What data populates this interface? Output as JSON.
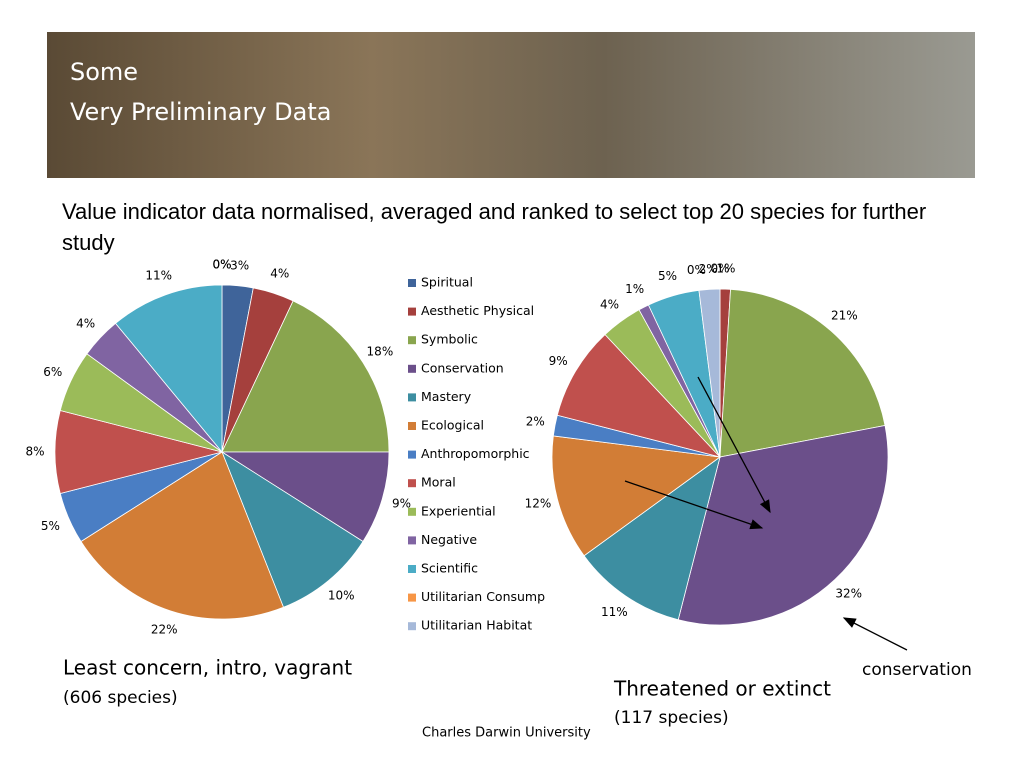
{
  "header": {
    "title_lines": [
      "Some",
      "Very Preliminary Data"
    ]
  },
  "intro": "Value indicator data normalised, averaged and ranked to select top 20 species for further study",
  "captions": {
    "left_title": "Least concern, intro, vagrant",
    "left_count": "(606 species)",
    "right_title": "Threatened or extinct",
    "right_count": "(117 species)",
    "annotation": "conservation"
  },
  "footer": "Charles Darwin University",
  "chart_data": [
    {
      "type": "pie",
      "categories": [
        "Spiritual",
        "Aesthetic Physical",
        "Symbolic",
        "Conservation",
        "Mastery",
        "Ecological",
        "Anthropomorphic",
        "Moral",
        "Experiential",
        "Negative",
        "Scientific",
        "Utilitarian Consump",
        "Utilitarian Habitat"
      ],
      "values": [
        3,
        4,
        18,
        9,
        10,
        22,
        5,
        8,
        6,
        4,
        11,
        0,
        0
      ],
      "value_labels": [
        "3%",
        "4%",
        "18%",
        "9%",
        "10%",
        "22%",
        "5%",
        "8%",
        "6%",
        "4%",
        "11%",
        "0%",
        "0%"
      ],
      "colors": [
        "#3f649a",
        "#a5403d",
        "#89a54e",
        "#6b4f8a",
        "#3d8ea1",
        "#d27d36",
        "#4a7ec4",
        "#c0504d",
        "#9bbb59",
        "#8064a2",
        "#4bacc6",
        "#f79646",
        "#a6b9d9"
      ]
    },
    {
      "type": "pie",
      "categories": [
        "Spiritual",
        "Aesthetic Physical",
        "Symbolic",
        "Conservation",
        "Mastery",
        "Ecological",
        "Anthropomorphic",
        "Moral",
        "Experiential",
        "Negative",
        "Scientific",
        "Utilitarian Consump",
        "Utilitarian Habitat"
      ],
      "values": [
        0,
        1,
        21,
        32,
        11,
        12,
        2,
        9,
        4,
        1,
        5,
        0,
        2
      ],
      "value_labels": [
        "0%",
        "1%",
        "21%",
        "32%",
        "11%",
        "12%",
        "2%",
        "9%",
        "4%",
        "1%",
        "5%",
        "0%",
        "2%"
      ],
      "colors": [
        "#3f649a",
        "#a5403d",
        "#89a54e",
        "#6b4f8a",
        "#3d8ea1",
        "#d27d36",
        "#4a7ec4",
        "#c0504d",
        "#9bbb59",
        "#8064a2",
        "#4bacc6",
        "#f79646",
        "#a6b9d9"
      ]
    }
  ]
}
